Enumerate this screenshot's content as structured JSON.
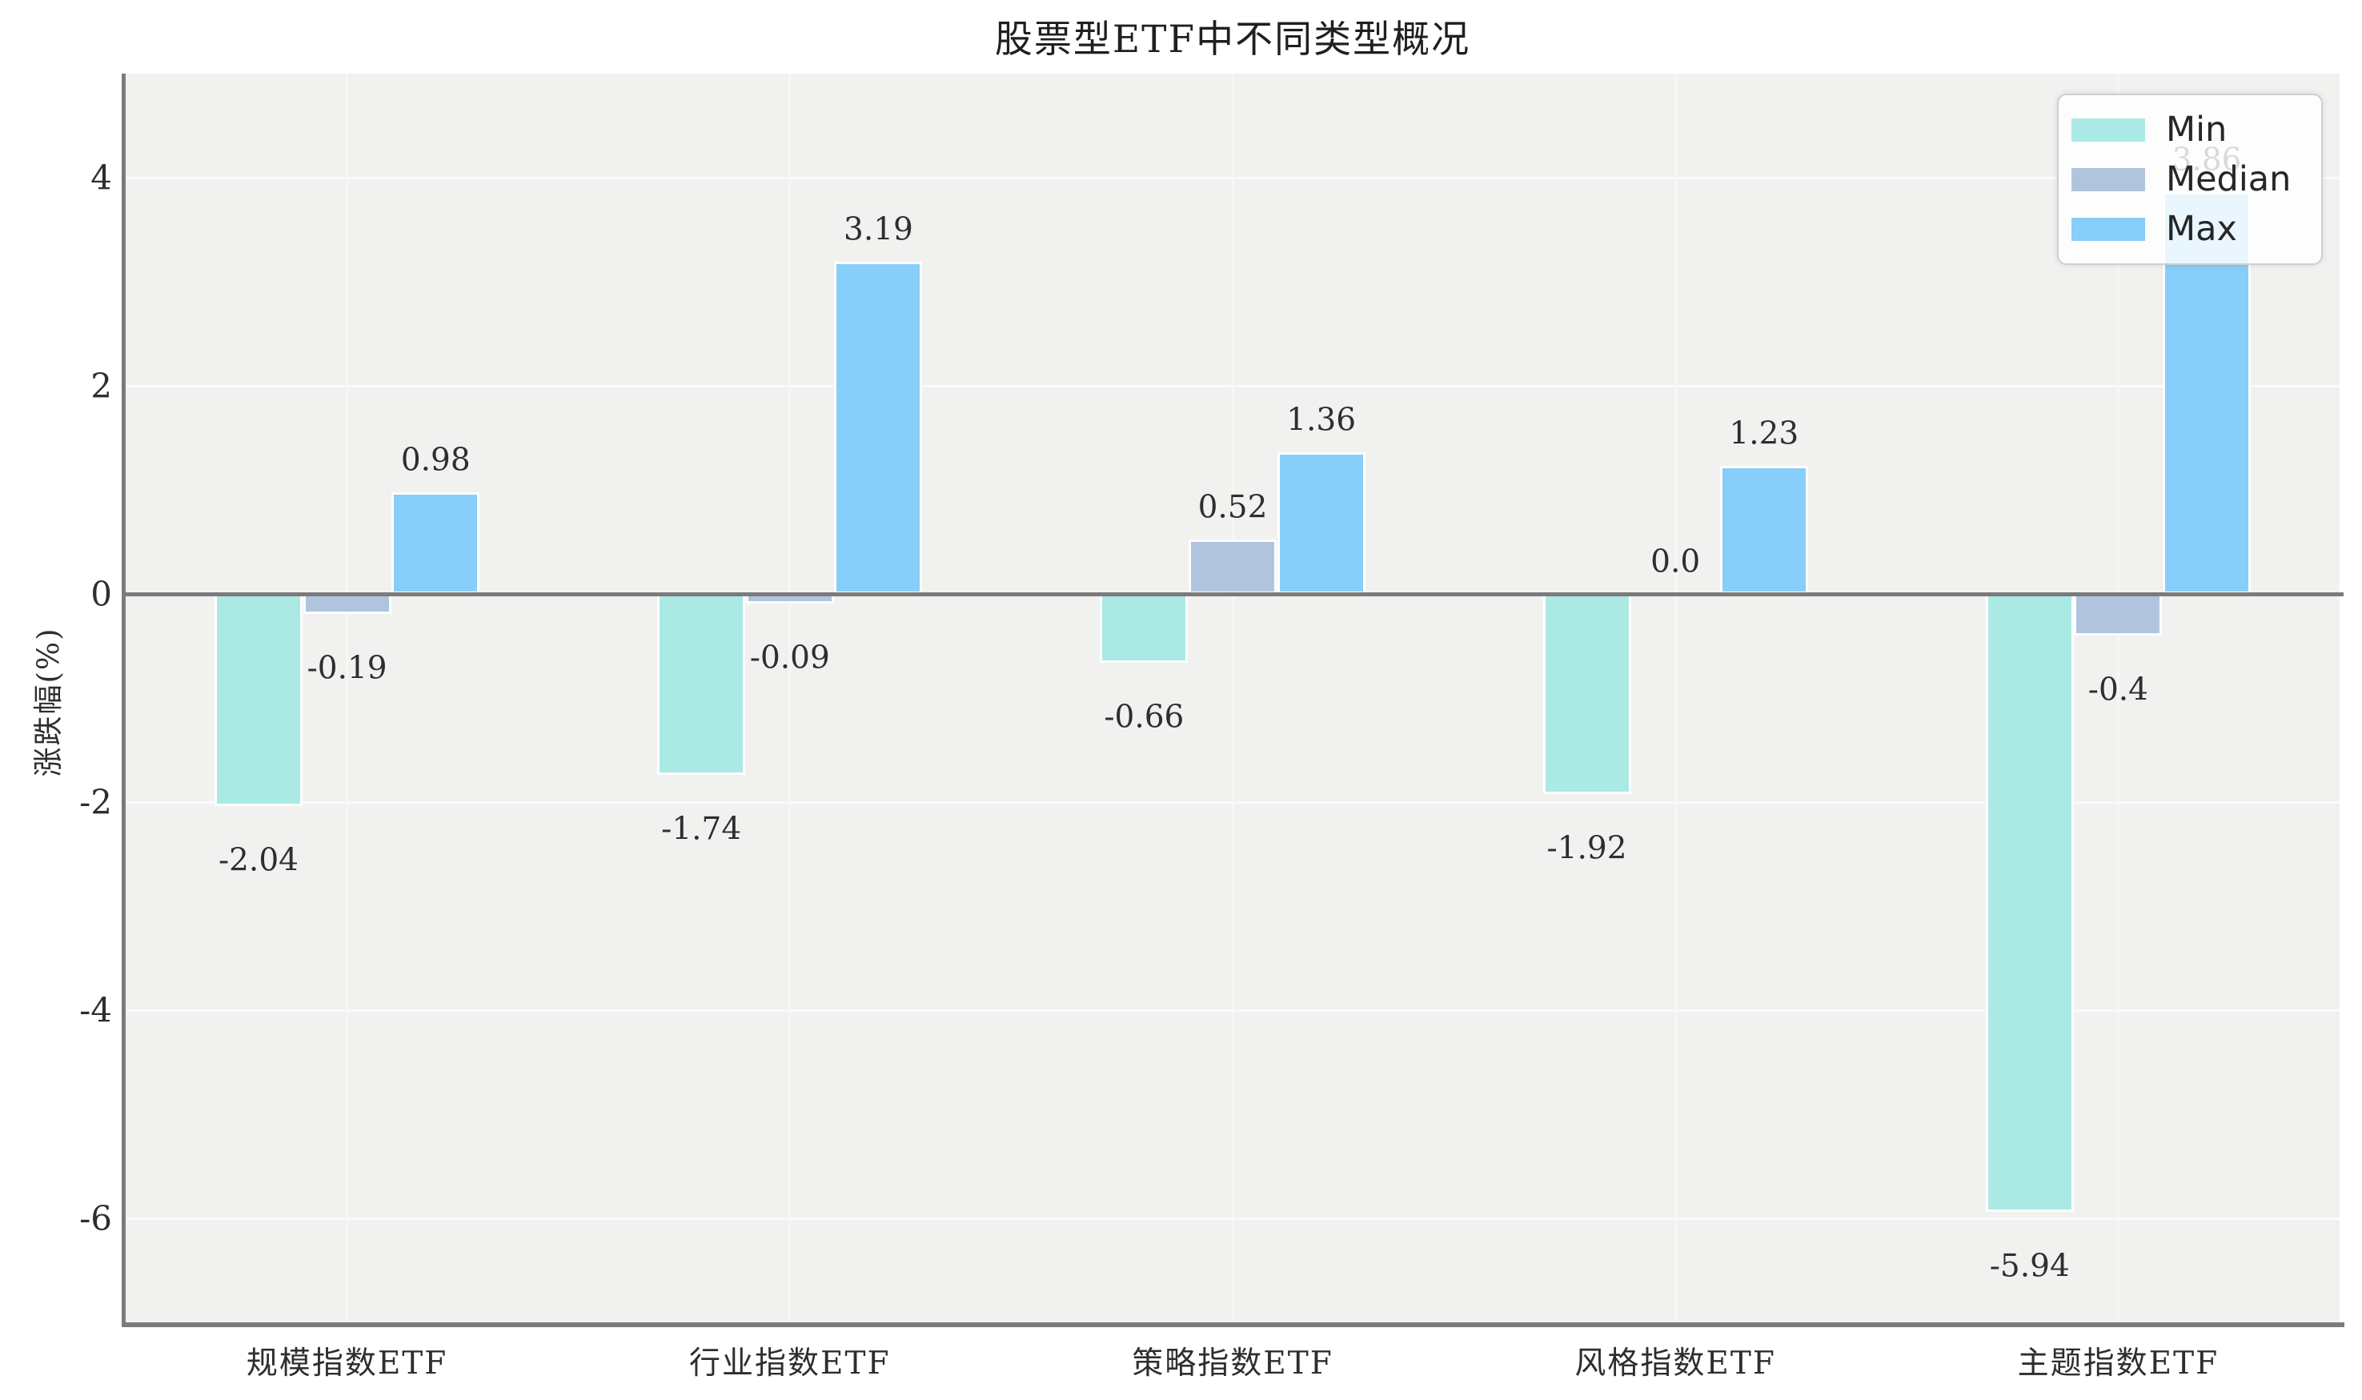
{
  "title": "股票型ETF中不同类型概况",
  "ylabel": "涨跌幅(%)",
  "chart_data": {
    "type": "bar",
    "title": "股票型ETF中不同类型概况",
    "xlabel": "",
    "ylabel": "涨跌幅(%)",
    "categories": [
      "规模指数ETF",
      "行业指数ETF",
      "策略指数ETF",
      "风格指数ETF",
      "主题指数ETF"
    ],
    "series": [
      {
        "name": "Min",
        "color": "#ABE9E4",
        "values": [
          -2.04,
          -1.74,
          -0.66,
          -1.92,
          -5.94
        ],
        "labels": [
          "-2.04",
          "-1.74",
          "-0.66",
          "-1.92",
          "-5.94"
        ]
      },
      {
        "name": "Median",
        "color": "#B0C4DE",
        "values": [
          -0.19,
          -0.09,
          0.52,
          0.0,
          -0.4
        ],
        "labels": [
          "-0.19",
          "-0.09",
          "0.52",
          "0.0",
          "-0.4"
        ]
      },
      {
        "name": "Max",
        "color": "#87CEFA",
        "values": [
          0.98,
          3.19,
          1.36,
          1.23,
          3.86
        ],
        "labels": [
          "0.98",
          "3.19",
          "1.36",
          "1.23",
          "3.86"
        ]
      }
    ],
    "ylim": [
      -7,
      5
    ],
    "yticks": [
      4,
      2,
      0,
      -2,
      -4,
      -6
    ],
    "ytick_labels": [
      "4",
      "2",
      "0",
      "-2",
      "-4",
      "-6"
    ],
    "grid": true,
    "legend_position": "upper right",
    "legend_entries": [
      "Min",
      "Median",
      "Max"
    ]
  },
  "colors": {
    "plot_background": "#f1f1f0",
    "figure_background": "#ffffff",
    "gridline": "#fafafa",
    "axis_spine": "#7b7b7b",
    "text": "#2e2e2e"
  }
}
